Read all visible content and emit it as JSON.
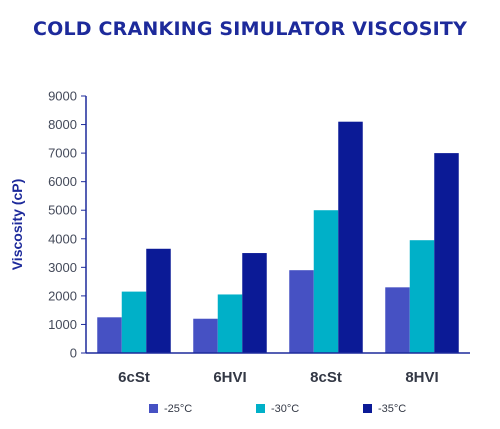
{
  "chart_data": {
    "type": "bar",
    "title": "COLD CRANKING SIMULATOR VISCOSITY",
    "xlabel": "",
    "ylabel": "Viscosity (cP)",
    "categories": [
      "6cSt",
      "6HVI",
      "8cSt",
      "8HVI"
    ],
    "series": [
      {
        "name": "-25°C",
        "color": "#4651c3",
        "values": [
          1250,
          1200,
          2900,
          2300
        ]
      },
      {
        "name": "-30°C",
        "color": "#00b0c8",
        "values": [
          2150,
          2050,
          5000,
          3950
        ]
      },
      {
        "name": "-35°C",
        "color": "#0b1a96",
        "values": [
          3650,
          3500,
          8100,
          7000
        ]
      }
    ],
    "ylim": [
      0,
      9000
    ],
    "yticks": [
      0,
      1000,
      2000,
      3000,
      4000,
      5000,
      6000,
      7000,
      8000,
      9000
    ],
    "grid": false,
    "legend": "bottom"
  }
}
